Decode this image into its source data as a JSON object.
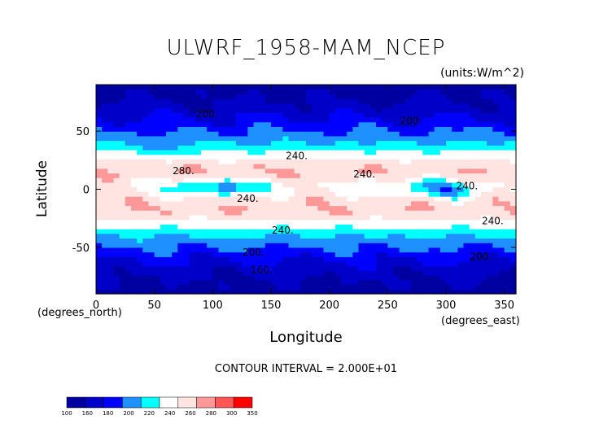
{
  "chart_data": {
    "type": "heatmap",
    "title": "ULWRF_1958-MAM_NCEP",
    "units_label": "(units:W/m^2)",
    "xlabel": "Longitude",
    "ylabel": "Latitude",
    "x_units": "(degrees_east)",
    "y_units": "(degrees_north)",
    "xlim": [
      0,
      360
    ],
    "ylim": [
      -90,
      90
    ],
    "x_ticks": [
      0,
      50,
      100,
      150,
      200,
      250,
      300,
      350
    ],
    "y_ticks": [
      -50,
      0,
      50
    ],
    "contour_interval_text": "CONTOUR INTERVAL = 2.000E+01",
    "contour_labels": [
      {
        "text": "200.",
        "lon": 95,
        "lat": 62
      },
      {
        "text": "200.",
        "lon": 270,
        "lat": 56
      },
      {
        "text": "240.",
        "lon": 172,
        "lat": 26
      },
      {
        "text": "240.",
        "lon": 230,
        "lat": 10
      },
      {
        "text": "280.",
        "lon": 75,
        "lat": 13
      },
      {
        "text": "240.",
        "lon": 130,
        "lat": -11
      },
      {
        "text": "240.",
        "lon": 160,
        "lat": -38
      },
      {
        "text": "240.",
        "lon": 318,
        "lat": 0
      },
      {
        "text": "240.",
        "lon": 340,
        "lat": -30
      },
      {
        "text": "200.",
        "lon": 135,
        "lat": -57
      },
      {
        "text": "200.",
        "lon": 330,
        "lat": -61
      },
      {
        "text": "160.",
        "lon": 142,
        "lat": -72
      }
    ],
    "colorbar": {
      "levels": [
        "100",
        "160",
        "180",
        "200",
        "220",
        "240",
        "260",
        "280",
        "300",
        "350"
      ],
      "colors": [
        "#0000a0",
        "#0000c8",
        "#0000ff",
        "#1e90ff",
        "#00ffff",
        "#ffffff",
        "#ffe4e1",
        "#ff9999",
        "#ff5555",
        "#ff0000"
      ]
    }
  }
}
